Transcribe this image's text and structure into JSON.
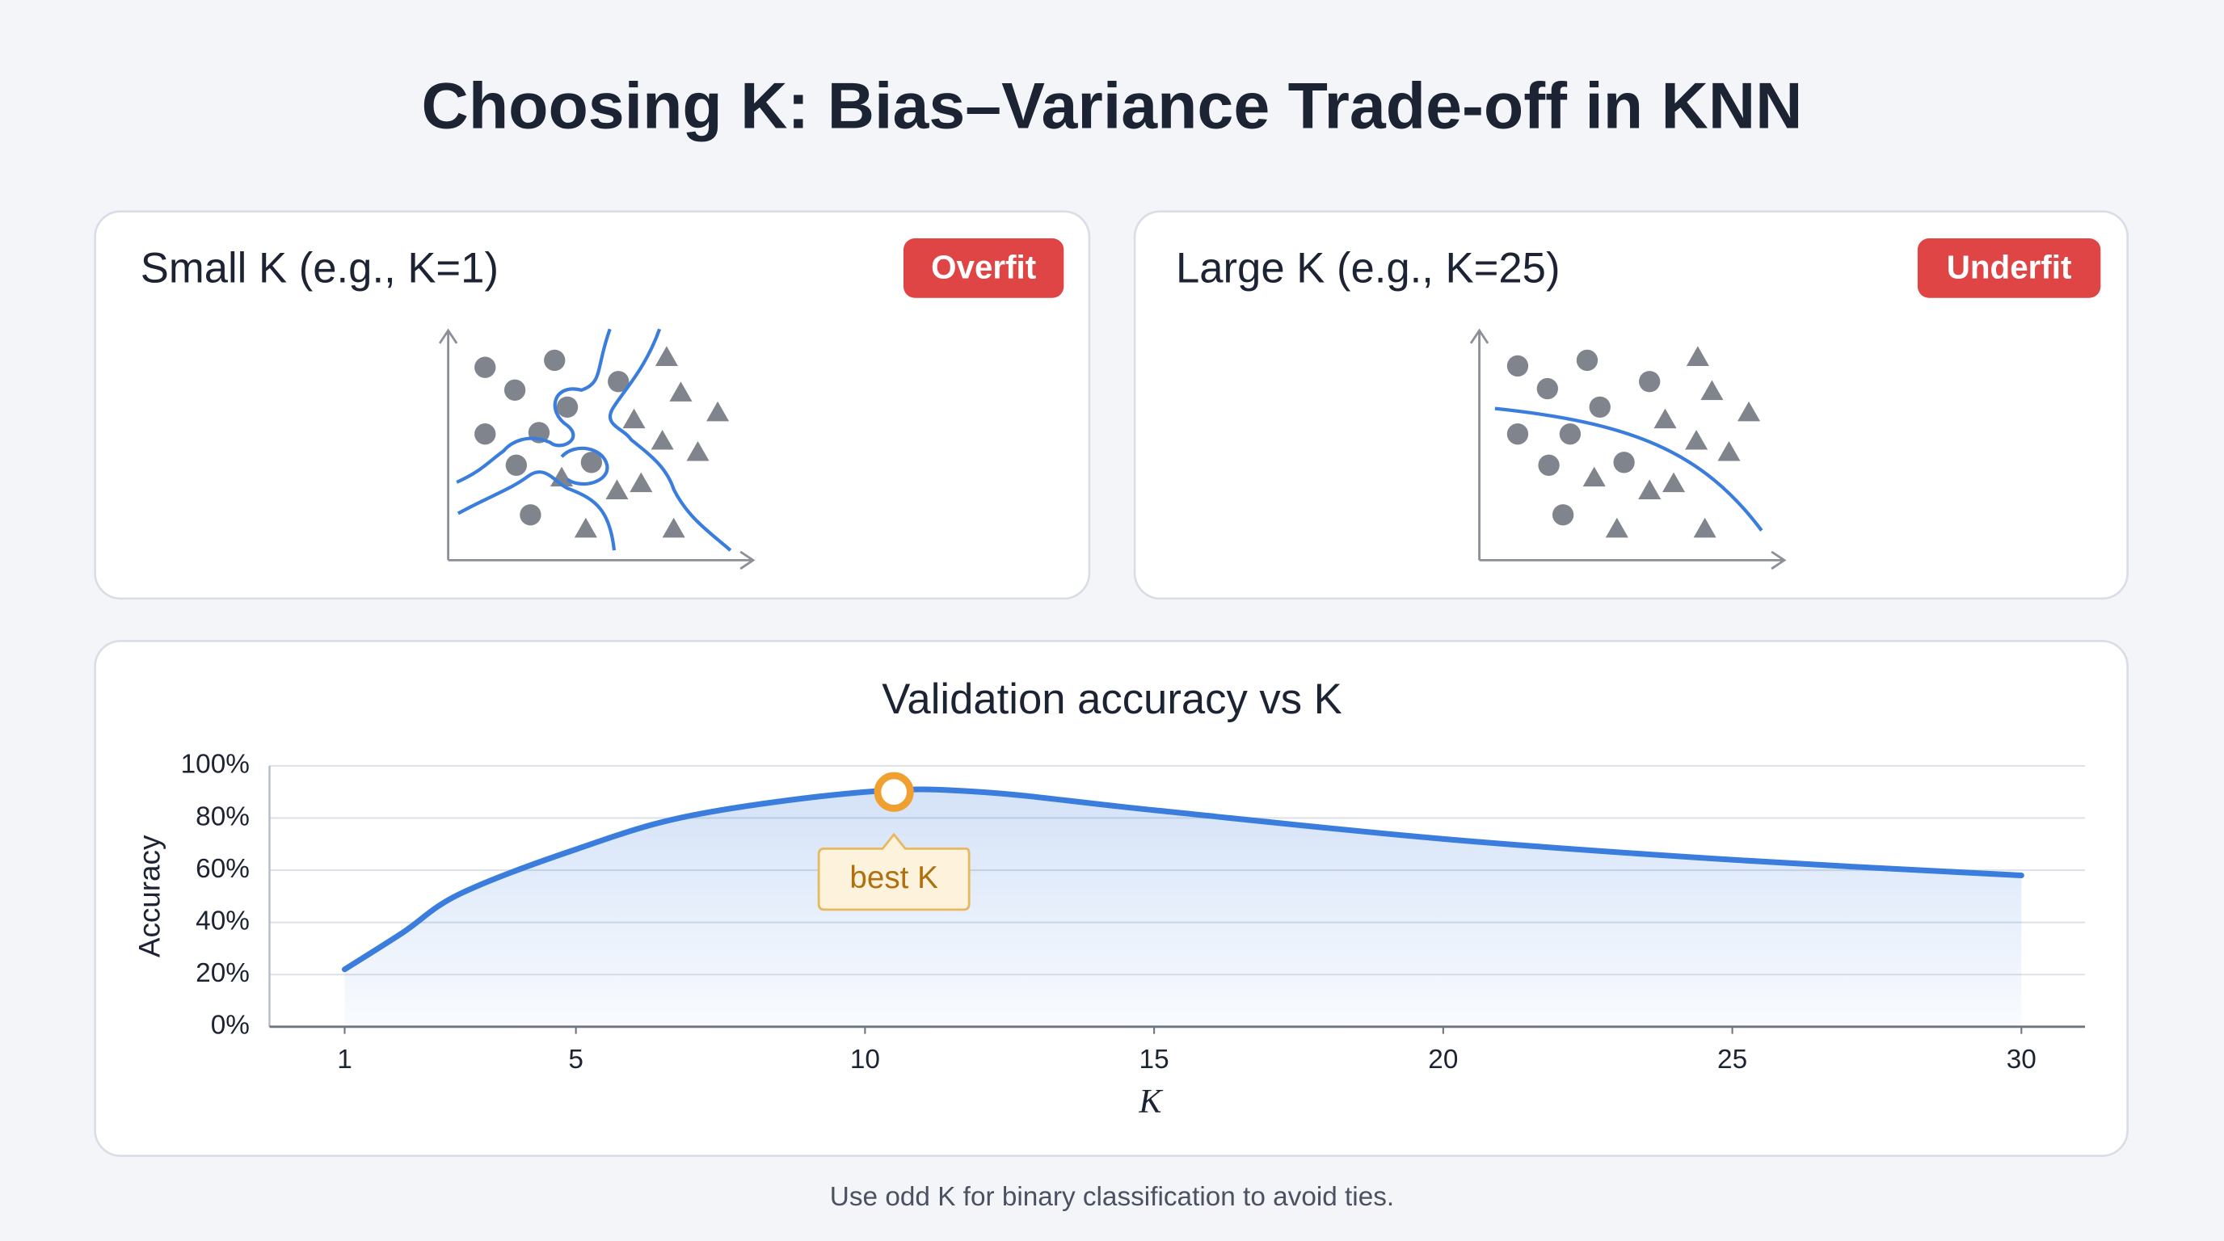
{
  "title": "Choosing K: Bias–Variance Trade-off in KNN",
  "panels": [
    {
      "title": "Small K (e.g., K=1)",
      "badge": "Overfit"
    },
    {
      "title": "Large K (e.g., K=25)",
      "badge": "Underfit"
    }
  ],
  "chart_data": {
    "type": "line",
    "title": "Validation accuracy vs K",
    "x_label": "K",
    "y_label": "Accuracy",
    "x": [
      1,
      2,
      3,
      5,
      7,
      10,
      12,
      15,
      20,
      25,
      30
    ],
    "values": [
      22,
      36,
      51,
      68,
      81,
      90,
      90,
      83,
      72,
      64,
      58
    ],
    "color": "#3b7ddd",
    "xlim": [
      -0.3,
      31.1
    ],
    "ylim": [
      0,
      100
    ],
    "xticks": [
      1,
      5,
      10,
      15,
      20,
      25,
      30
    ],
    "yticks": [
      {
        "value": 0,
        "label": "0%"
      },
      {
        "value": 20,
        "label": "20%"
      },
      {
        "value": 40,
        "label": "40%"
      },
      {
        "value": 60,
        "label": "60%"
      },
      {
        "value": 80,
        "label": "80%"
      },
      {
        "value": 100,
        "label": "100%"
      }
    ],
    "grid": true,
    "best_k": {
      "x": 10.5,
      "y": 90,
      "label": "best K"
    }
  },
  "footer": "Use odd K for binary classification to avoid ties."
}
